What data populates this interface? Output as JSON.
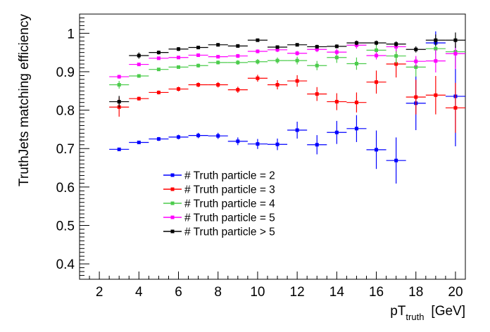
{
  "chart_data": {
    "type": "scatter",
    "title": "",
    "xlabel": "pT",
    "xlabel_sub": "truth",
    "xlabel_unit": "[GeV]",
    "ylabel": "TruthJets matching efficiency",
    "xlim": [
      1,
      20.5
    ],
    "ylim": [
      0.36,
      1.05
    ],
    "x_ticks": [
      2,
      4,
      6,
      8,
      10,
      12,
      14,
      16,
      18,
      20
    ],
    "y_ticks": [
      0.4,
      0.5,
      0.6,
      0.7,
      0.8,
      0.9,
      1
    ],
    "grid": false,
    "legend_position": "lower-left",
    "x_half_width": 0.5,
    "x": [
      3,
      4,
      5,
      6,
      7,
      8,
      9,
      10,
      11,
      12,
      13,
      14,
      15,
      16,
      17,
      18,
      19,
      20
    ],
    "series": [
      {
        "name": "# Truth particle = 2",
        "color": "#0000ff",
        "y": [
          0.698,
          0.716,
          0.725,
          0.73,
          0.734,
          0.733,
          0.719,
          0.712,
          0.711,
          0.748,
          0.71,
          0.742,
          0.752,
          0.697,
          0.669,
          0.818,
          0.975,
          0.836
        ],
        "err": [
          0.003,
          0.004,
          0.005,
          0.006,
          0.007,
          0.008,
          0.01,
          0.013,
          0.015,
          0.022,
          0.025,
          0.03,
          0.035,
          0.05,
          0.06,
          0.07,
          0.03,
          0.13
        ]
      },
      {
        "name": "# Truth particle = 3",
        "color": "#ff0000",
        "y": [
          0.808,
          0.83,
          0.846,
          0.855,
          0.866,
          0.866,
          0.853,
          0.883,
          0.866,
          0.876,
          0.842,
          0.822,
          0.82,
          0.873,
          0.92,
          0.834,
          0.839,
          0.806
        ],
        "err": [
          0.025,
          0.005,
          0.005,
          0.006,
          0.006,
          0.007,
          0.008,
          0.009,
          0.012,
          0.015,
          0.018,
          0.022,
          0.026,
          0.03,
          0.035,
          0.045,
          0.05,
          0.065
        ]
      },
      {
        "name": "# Truth particle = 4",
        "color": "#4ccc4c",
        "y": [
          0.866,
          0.889,
          0.906,
          0.912,
          0.916,
          0.924,
          0.924,
          0.926,
          0.929,
          0.929,
          0.916,
          0.937,
          0.921,
          0.956,
          0.941,
          0.912,
          0.96,
          0.952
        ],
        "err": [
          0.01,
          0.004,
          0.004,
          0.004,
          0.005,
          0.005,
          0.006,
          0.007,
          0.008,
          0.01,
          0.012,
          0.014,
          0.016,
          0.018,
          0.02,
          0.025,
          0.03,
          0.04
        ]
      },
      {
        "name": "# Truth particle = 5",
        "color": "#ff00ff",
        "y": [
          0.887,
          0.919,
          0.935,
          0.937,
          0.943,
          0.939,
          0.941,
          0.953,
          0.957,
          0.948,
          0.958,
          0.951,
          0.969,
          0.942,
          0.965,
          0.927,
          0.928,
          0.947
        ],
        "err": [
          0.005,
          0.004,
          0.004,
          0.004,
          0.004,
          0.004,
          0.005,
          0.005,
          0.006,
          0.006,
          0.007,
          0.008,
          0.009,
          0.01,
          0.012,
          0.014,
          0.03,
          0.04
        ]
      },
      {
        "name": "# Truth particle > 5",
        "color": "#000000",
        "y": [
          0.822,
          0.942,
          0.95,
          0.959,
          0.963,
          0.97,
          0.967,
          0.982,
          0.964,
          0.97,
          0.965,
          0.966,
          0.975,
          0.975,
          0.972,
          0.958,
          0.982,
          0.982
        ],
        "err": [
          0.015,
          0.008,
          0.005,
          0.005,
          0.004,
          0.004,
          0.004,
          0.004,
          0.004,
          0.004,
          0.005,
          0.005,
          0.006,
          0.006,
          0.007,
          0.008,
          0.015,
          0.02
        ]
      }
    ]
  }
}
